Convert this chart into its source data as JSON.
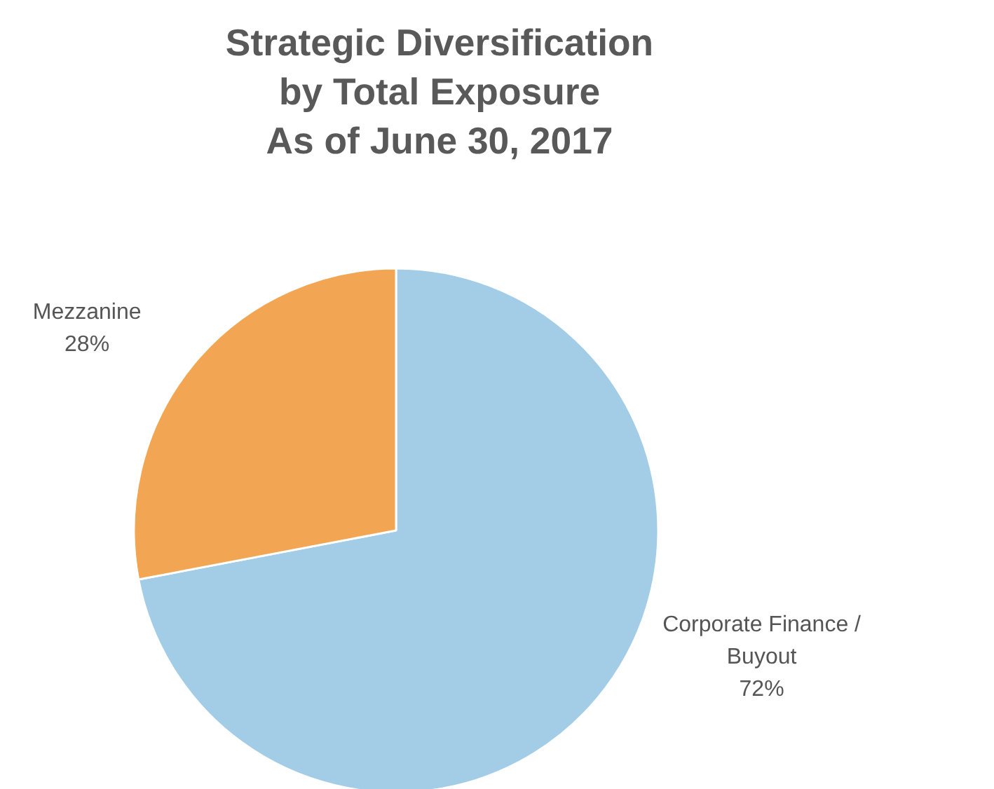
{
  "chart_data": {
    "type": "pie",
    "title": "Strategic Diversification\nby Total Exposure\nAs of June 30, 2017",
    "categories": [
      "Corporate Finance / Buyout",
      "Mezzanine"
    ],
    "values": [
      72,
      28
    ],
    "colors": [
      "#a3cde6",
      "#f2a552"
    ],
    "value_labels": [
      "72%",
      "28%"
    ]
  }
}
